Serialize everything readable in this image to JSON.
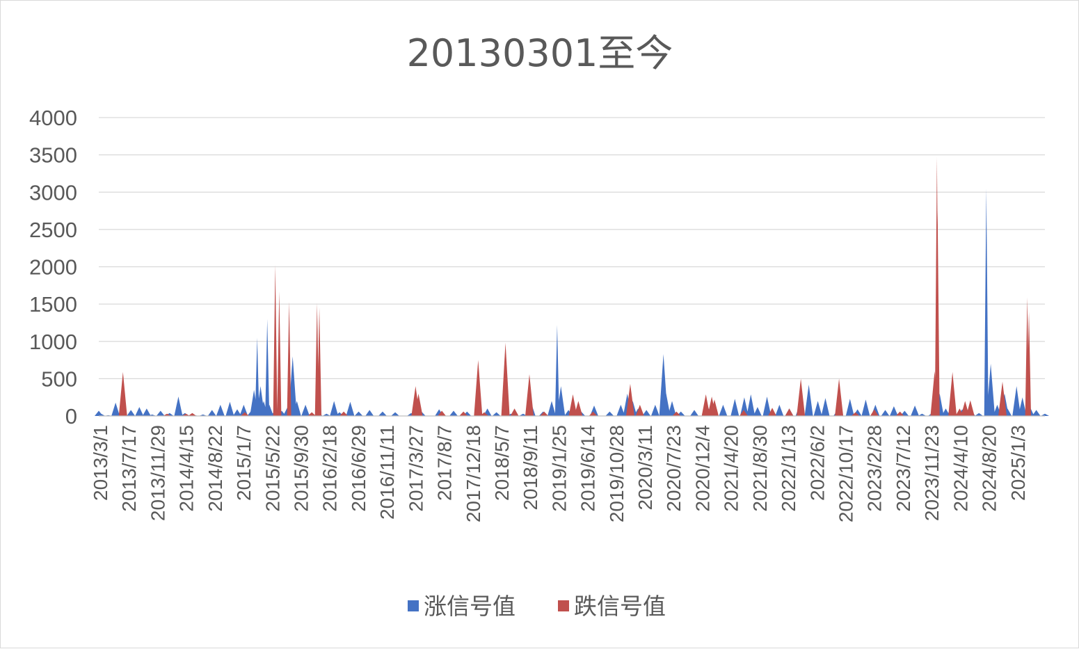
{
  "chart_data": {
    "type": "area",
    "title": "20130301至今",
    "xlabel": "",
    "ylabel": "",
    "ylim": [
      0,
      4000
    ],
    "yticks": [
      0,
      500,
      1000,
      1500,
      2000,
      2500,
      3000,
      3500,
      4000
    ],
    "grid": true,
    "legend_position": "bottom",
    "x_range": [
      "2013-03-01",
      "2025-06-30"
    ],
    "xtick_labels": [
      "2013/3/1",
      "2013/7/17",
      "2013/11/29",
      "2014/4/15",
      "2014/8/22",
      "2015/1/7",
      "2015/5/22",
      "2015/9/30",
      "2016/2/18",
      "2016/6/29",
      "2016/11/11",
      "2017/3/27",
      "2017/8/7",
      "2017/12/18",
      "2018/5/7",
      "2018/9/11",
      "2019/1/25",
      "2019/6/14",
      "2019/10/28",
      "2020/3/11",
      "2020/7/23",
      "2020/12/4",
      "2021/4/20",
      "2021/8/30",
      "2022/1/13",
      "2022/6/2",
      "2022/10/17",
      "2023/2/28",
      "2023/7/12",
      "2023/11/23",
      "2024/4/10",
      "2024/8/20",
      "2025/1/3"
    ],
    "series": [
      {
        "name": "涨信号值",
        "color": "#4472c4",
        "points": [
          [
            "2013-03-01",
            70
          ],
          [
            "2013-03-12",
            30
          ],
          [
            "2013-04-15",
            10
          ],
          [
            "2013-05-20",
            180
          ],
          [
            "2013-06-05",
            40
          ],
          [
            "2013-07-01",
            30
          ],
          [
            "2013-08-01",
            80
          ],
          [
            "2013-09-10",
            120
          ],
          [
            "2013-10-15",
            100
          ],
          [
            "2013-11-10",
            20
          ],
          [
            "2013-12-20",
            70
          ],
          [
            "2014-02-01",
            40
          ],
          [
            "2014-03-15",
            260
          ],
          [
            "2014-04-15",
            40
          ],
          [
            "2014-06-01",
            10
          ],
          [
            "2014-07-10",
            20
          ],
          [
            "2014-08-22",
            80
          ],
          [
            "2014-10-01",
            150
          ],
          [
            "2014-11-15",
            190
          ],
          [
            "2014-12-20",
            90
          ],
          [
            "2015-01-20",
            150
          ],
          [
            "2015-02-25",
            70
          ],
          [
            "2015-03-10",
            350
          ],
          [
            "2015-03-25",
            1050
          ],
          [
            "2015-04-10",
            400
          ],
          [
            "2015-04-25",
            200
          ],
          [
            "2015-05-12",
            1300
          ],
          [
            "2015-05-22",
            150
          ],
          [
            "2015-06-15",
            60
          ],
          [
            "2015-07-20",
            70
          ],
          [
            "2015-08-15",
            110
          ],
          [
            "2015-09-10",
            800
          ],
          [
            "2015-09-30",
            200
          ],
          [
            "2015-11-10",
            150
          ],
          [
            "2016-01-10",
            60
          ],
          [
            "2016-02-18",
            30
          ],
          [
            "2016-03-25",
            200
          ],
          [
            "2016-04-20",
            50
          ],
          [
            "2016-06-10",
            190
          ],
          [
            "2016-07-20",
            60
          ],
          [
            "2016-09-10",
            80
          ],
          [
            "2016-11-11",
            60
          ],
          [
            "2017-01-10",
            50
          ],
          [
            "2017-03-27",
            40
          ],
          [
            "2017-05-15",
            60
          ],
          [
            "2017-08-07",
            90
          ],
          [
            "2017-10-15",
            70
          ],
          [
            "2017-12-18",
            60
          ],
          [
            "2018-02-15",
            40
          ],
          [
            "2018-03-25",
            100
          ],
          [
            "2018-05-07",
            50
          ],
          [
            "2018-07-15",
            30
          ],
          [
            "2018-09-11",
            30
          ],
          [
            "2018-10-20",
            170
          ],
          [
            "2018-12-15",
            60
          ],
          [
            "2019-01-25",
            200
          ],
          [
            "2019-02-20",
            1220
          ],
          [
            "2019-03-10",
            400
          ],
          [
            "2019-04-15",
            80
          ],
          [
            "2019-06-14",
            60
          ],
          [
            "2019-08-15",
            140
          ],
          [
            "2019-10-28",
            60
          ],
          [
            "2019-12-20",
            150
          ],
          [
            "2020-01-20",
            300
          ],
          [
            "2020-02-15",
            200
          ],
          [
            "2020-03-11",
            100
          ],
          [
            "2020-04-20",
            80
          ],
          [
            "2020-06-01",
            150
          ],
          [
            "2020-07-10",
            830
          ],
          [
            "2020-07-23",
            300
          ],
          [
            "2020-08-20",
            200
          ],
          [
            "2020-10-01",
            60
          ],
          [
            "2020-12-04",
            80
          ],
          [
            "2021-02-10",
            100
          ],
          [
            "2021-04-20",
            150
          ],
          [
            "2021-06-15",
            230
          ],
          [
            "2021-07-30",
            250
          ],
          [
            "2021-08-30",
            290
          ],
          [
            "2021-10-01",
            120
          ],
          [
            "2021-11-15",
            260
          ],
          [
            "2022-01-13",
            150
          ],
          [
            "2022-03-01",
            100
          ],
          [
            "2022-04-20",
            150
          ],
          [
            "2022-06-02",
            420
          ],
          [
            "2022-07-15",
            200
          ],
          [
            "2022-08-20",
            240
          ],
          [
            "2022-10-17",
            80
          ],
          [
            "2022-12-15",
            230
          ],
          [
            "2023-01-20",
            90
          ],
          [
            "2023-02-28",
            220
          ],
          [
            "2023-04-15",
            150
          ],
          [
            "2023-06-01",
            80
          ],
          [
            "2023-07-12",
            130
          ],
          [
            "2023-09-01",
            70
          ],
          [
            "2023-10-20",
            140
          ],
          [
            "2023-11-23",
            30
          ],
          [
            "2024-01-10",
            40
          ],
          [
            "2024-02-15",
            300
          ],
          [
            "2024-03-15",
            100
          ],
          [
            "2024-04-10",
            130
          ],
          [
            "2024-06-01",
            90
          ],
          [
            "2024-07-15",
            60
          ],
          [
            "2024-08-20",
            40
          ],
          [
            "2024-09-24",
            3050
          ],
          [
            "2024-10-15",
            700
          ],
          [
            "2024-11-15",
            150
          ],
          [
            "2024-12-20",
            300
          ],
          [
            "2025-01-03",
            100
          ],
          [
            "2025-02-15",
            400
          ],
          [
            "2025-03-15",
            250
          ],
          [
            "2025-04-20",
            120
          ],
          [
            "2025-05-20",
            80
          ],
          [
            "2025-06-30",
            30
          ]
        ]
      },
      {
        "name": "跌信号值",
        "color": "#c0504d",
        "points": [
          [
            "2013-06-24",
            590
          ],
          [
            "2014-01-20",
            30
          ],
          [
            "2014-04-20",
            30
          ],
          [
            "2014-05-20",
            40
          ],
          [
            "2015-01-25",
            50
          ],
          [
            "2015-06-19",
            2020
          ],
          [
            "2015-07-08",
            1670
          ],
          [
            "2015-08-24",
            1530
          ],
          [
            "2015-12-10",
            50
          ],
          [
            "2016-01-04",
            1510
          ],
          [
            "2016-01-15",
            1450
          ],
          [
            "2016-05-10",
            60
          ],
          [
            "2017-04-17",
            400
          ],
          [
            "2017-05-01",
            300
          ],
          [
            "2017-08-20",
            70
          ],
          [
            "2017-12-01",
            60
          ],
          [
            "2018-02-09",
            750
          ],
          [
            "2018-03-10",
            50
          ],
          [
            "2018-06-19",
            980
          ],
          [
            "2018-08-01",
            100
          ],
          [
            "2018-10-11",
            560
          ],
          [
            "2018-12-20",
            60
          ],
          [
            "2019-05-06",
            290
          ],
          [
            "2019-06-01",
            200
          ],
          [
            "2019-08-10",
            60
          ],
          [
            "2020-02-03",
            430
          ],
          [
            "2020-03-20",
            150
          ],
          [
            "2020-09-10",
            60
          ],
          [
            "2021-01-28",
            290
          ],
          [
            "2021-02-25",
            260
          ],
          [
            "2021-03-10",
            220
          ],
          [
            "2021-07-27",
            80
          ],
          [
            "2021-12-10",
            110
          ],
          [
            "2022-03-01",
            100
          ],
          [
            "2022-04-25",
            500
          ],
          [
            "2022-10-24",
            500
          ],
          [
            "2023-01-10",
            50
          ],
          [
            "2023-04-10",
            90
          ],
          [
            "2023-08-10",
            60
          ],
          [
            "2024-01-22",
            600
          ],
          [
            "2024-02-02",
            3470
          ],
          [
            "2024-02-05",
            2750
          ],
          [
            "2024-04-16",
            590
          ],
          [
            "2024-05-20",
            100
          ],
          [
            "2024-06-15",
            200
          ],
          [
            "2024-07-10",
            210
          ],
          [
            "2024-12-10",
            460
          ],
          [
            "2025-04-07",
            1590
          ],
          [
            "2025-04-15",
            1400
          ]
        ]
      }
    ]
  }
}
